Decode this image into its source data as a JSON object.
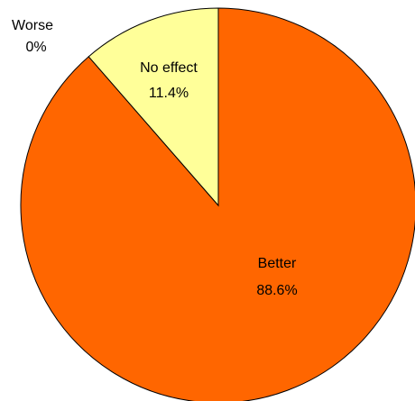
{
  "chart_data": {
    "type": "pie",
    "title": "",
    "categories": [
      "Better",
      "No effect",
      "Worse"
    ],
    "values": [
      88.6,
      11.4,
      0
    ],
    "value_labels": [
      "88.6%",
      "11.4%",
      "0%"
    ],
    "colors": [
      "#FF6600",
      "#FFFF99",
      "#9999FF"
    ],
    "outline_color": "#000000",
    "legend": "none"
  }
}
